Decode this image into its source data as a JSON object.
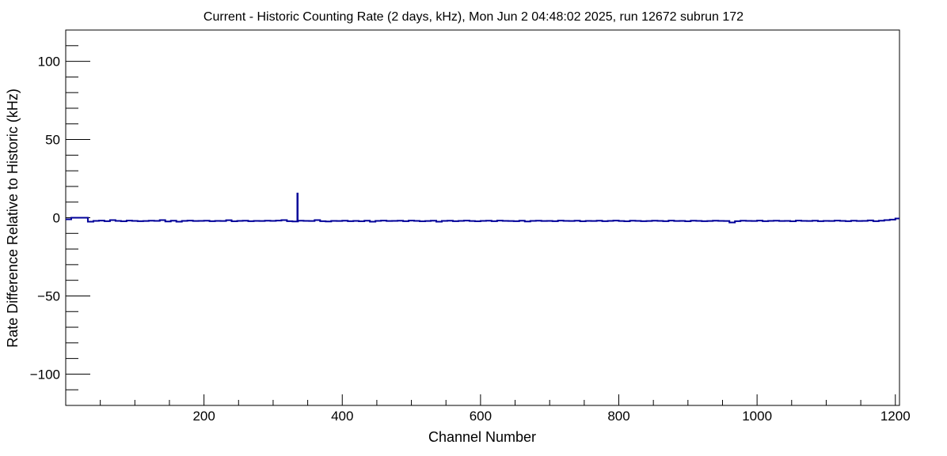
{
  "chart_data": {
    "type": "bar",
    "histogram_style": "step",
    "title": "Current - Historic Counting Rate (2 days, kHz), Mon Jun  2 04:48:02 2025, run 12672 subrun 172",
    "xlabel": "Channel Number",
    "ylabel": "Rate Difference Relative to Historic (kHz)",
    "xlim": [
      0,
      1206
    ],
    "ylim": [
      -120,
      120
    ],
    "xticks": [
      200,
      400,
      600,
      800,
      1000,
      1200
    ],
    "xtick_labels": [
      "200",
      "400",
      "600",
      "800",
      "1000",
      "1200"
    ],
    "yticks": [
      -100,
      -50,
      0,
      50,
      100
    ],
    "ytick_labels": [
      "−100",
      "−50",
      "0",
      "50",
      "100"
    ],
    "line_color": "#000099",
    "bin_start": 0,
    "bin_width": 8,
    "values": [
      -1,
      0,
      0,
      0,
      -2.5,
      -2,
      -1.8,
      -2.2,
      -1.5,
      -2,
      -2.3,
      -1.8,
      -2,
      -2.2,
      -2.1,
      -1.9,
      -2,
      -1.5,
      -2.4,
      -1.9,
      -2.5,
      -2,
      -1.8,
      -2.1,
      -2,
      -1.9,
      -2.2,
      -2,
      -2.1,
      -1.6,
      -2.3,
      -2,
      -1.9,
      -2.2,
      -2,
      -2.1,
      -1.9,
      -2,
      -1.8,
      -1.5,
      -2.2,
      -2.4,
      -1.9,
      -2,
      -2.1,
      -1.5,
      -2.2,
      -2.4,
      -2,
      -2.1,
      -1.9,
      -2.2,
      -2,
      -2.3,
      -1.9,
      -2.5,
      -2,
      -1.8,
      -2.1,
      -2,
      -1.9,
      -2.2,
      -1.8,
      -2,
      -2.3,
      -2.1,
      -1.9,
      -2.5,
      -2,
      -1.9,
      -2.2,
      -2,
      -1.8,
      -2.1,
      -2.3,
      -2,
      -1.9,
      -2.2,
      -1.8,
      -2,
      -2.1,
      -2.2,
      -1.9,
      -2.4,
      -2,
      -1.9,
      -2.1,
      -2,
      -2.2,
      -1.8,
      -2,
      -2.1,
      -1.9,
      -2.3,
      -2,
      -2.1,
      -1.9,
      -2.2,
      -2,
      -1.8,
      -2.1,
      -2.3,
      -1.9,
      -2,
      -2.2,
      -2.1,
      -1.9,
      -2,
      -2.2,
      -1.8,
      -2.1,
      -2,
      -2.3,
      -1.9,
      -2,
      -2.2,
      -2.1,
      -1.9,
      -2,
      -2.1,
      -3,
      -2.2,
      -1.9,
      -2,
      -2.1,
      -1.8,
      -2.2,
      -2,
      -1.9,
      -2.1,
      -2,
      -2.3,
      -1.8,
      -2,
      -2.1,
      -1.9,
      -2.2,
      -2,
      -2.1,
      -1.8,
      -2,
      -2.2,
      -1.9,
      -2.1,
      -2,
      -1.7,
      -2.2,
      -1.9,
      -1.5,
      -1.2,
      -0.5
    ],
    "spikes": [
      {
        "x": 335,
        "y": 16
      }
    ]
  }
}
